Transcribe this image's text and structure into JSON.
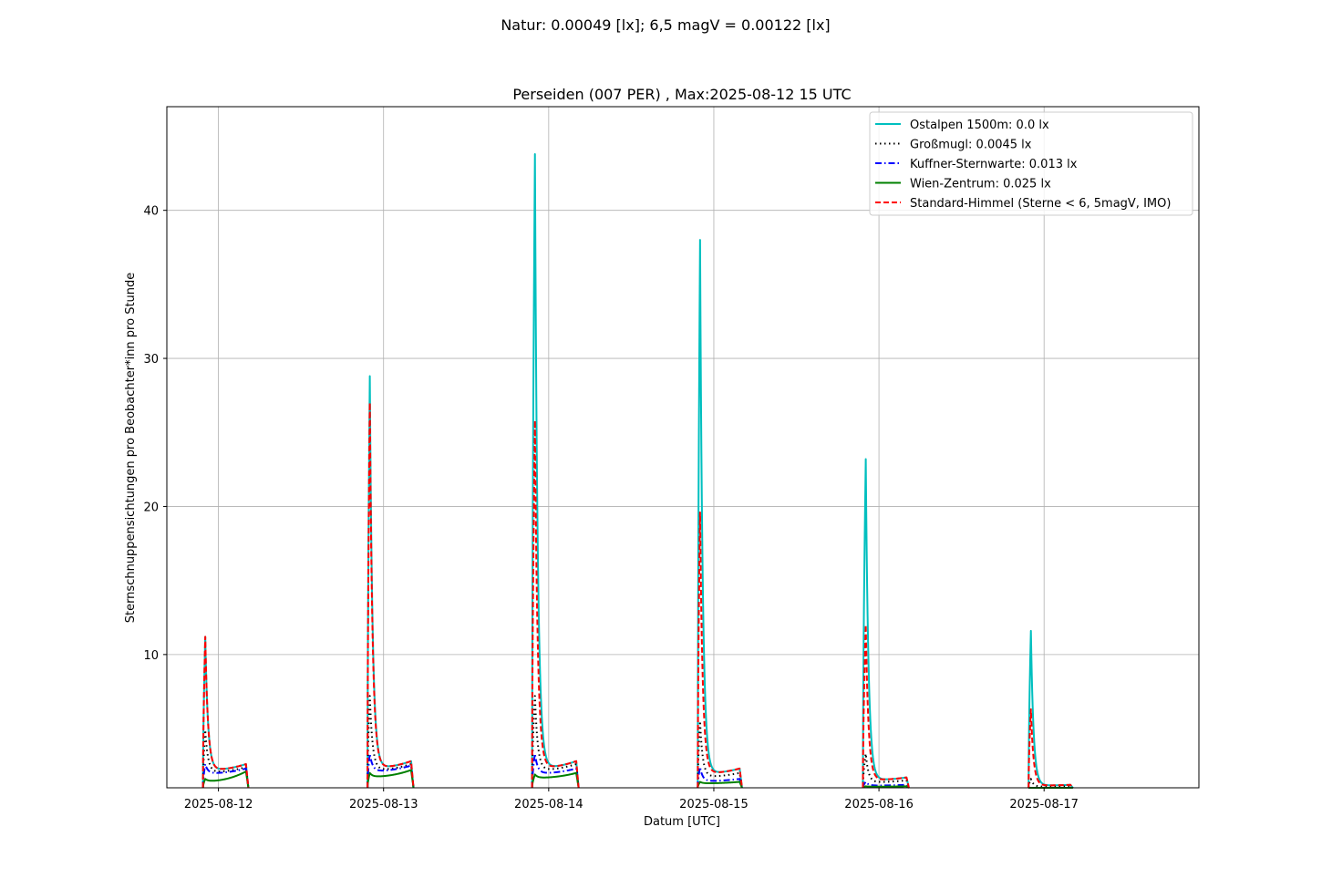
{
  "figure": {
    "suptitle": "Natur: 0.00049 [lx]; 6,5 magV = 0.00122 [lx]"
  },
  "chart_data": {
    "type": "line",
    "title": "Perseiden (007 PER) , Max:2025-08-12 15 UTC",
    "xlabel": "Datum [UTC]",
    "ylabel": "Sternschnuppensichtungen pro Beobachter*inn pro Stunde",
    "x_unit": "days (UTC)",
    "xlim": [
      "2025-08-11 16:30",
      "2025-08-17 22:30"
    ],
    "ylim": [
      1,
      47
    ],
    "x_ticks": [
      "2025-08-12",
      "2025-08-13",
      "2025-08-14",
      "2025-08-15",
      "2025-08-16",
      "2025-08-17"
    ],
    "y_ticks": [
      10,
      20,
      30,
      40
    ],
    "grid": true,
    "legend_position": "top-right",
    "nights": [
      {
        "start": "2025-08-11 21:45",
        "peak": "2025-08-11 22:05",
        "end": "2025-08-12 04:00",
        "values": {
          "ostalpen": 11.2,
          "grossmugl": 4.9,
          "kuffner": 2.6,
          "wien": 1.6,
          "standard": 11.2
        },
        "end_values": {
          "ostalpen": 2.6,
          "grossmugl": 2.4,
          "kuffner": 2.3,
          "wien": 2.1,
          "standard": 2.6
        }
      },
      {
        "start": "2025-08-12 21:40",
        "peak": "2025-08-12 22:00",
        "end": "2025-08-13 04:00",
        "values": {
          "ostalpen": 28.8,
          "grossmugl": 7.2,
          "kuffner": 3.3,
          "wien": 2.0,
          "standard": 27.0
        },
        "end_values": {
          "ostalpen": 2.8,
          "grossmugl": 2.6,
          "kuffner": 2.5,
          "wien": 2.2,
          "standard": 2.8
        }
      },
      {
        "start": "2025-08-13 21:35",
        "peak": "2025-08-13 22:00",
        "end": "2025-08-14 04:00",
        "values": {
          "ostalpen": 43.8,
          "grossmugl": 7.2,
          "kuffner": 3.3,
          "wien": 1.9,
          "standard": 25.8
        },
        "end_values": {
          "ostalpen": 2.8,
          "grossmugl": 2.6,
          "kuffner": 2.3,
          "wien": 2.0,
          "standard": 2.8
        }
      },
      {
        "start": "2025-08-14 21:40",
        "peak": "2025-08-14 22:00",
        "end": "2025-08-15 03:45",
        "values": {
          "ostalpen": 38.0,
          "grossmugl": 5.5,
          "kuffner": 2.4,
          "wien": 1.4,
          "standard": 19.6
        },
        "end_values": {
          "ostalpen": 2.3,
          "grossmugl": 2.0,
          "kuffner": 1.6,
          "wien": 1.4,
          "standard": 2.3
        }
      },
      {
        "start": "2025-08-15 21:40",
        "peak": "2025-08-15 22:05",
        "end": "2025-08-16 04:00",
        "values": {
          "ostalpen": 23.2,
          "grossmugl": 3.3,
          "kuffner": 1.4,
          "wien": 1.1,
          "standard": 12.0
        },
        "end_values": {
          "ostalpen": 1.7,
          "grossmugl": 1.5,
          "kuffner": 1.2,
          "wien": 1.1,
          "standard": 1.7
        }
      },
      {
        "start": "2025-08-16 21:45",
        "peak": "2025-08-16 22:05",
        "end": "2025-08-17 03:50",
        "values": {
          "ostalpen": 11.6,
          "grossmugl": 1.6,
          "kuffner": 1.0,
          "wien": 1.0,
          "standard": 6.3
        },
        "end_values": {
          "ostalpen": 1.2,
          "grossmugl": 1.1,
          "kuffner": 1.0,
          "wien": 1.0,
          "standard": 1.2
        }
      }
    ],
    "series": [
      {
        "key": "ostalpen",
        "name": "Ostalpen 1500m: 0.0 lx",
        "color": "#00bfbf",
        "style": "solid"
      },
      {
        "key": "grossmugl",
        "name": "Großmugl: 0.0045 lx",
        "color": "#000000",
        "style": "dotted"
      },
      {
        "key": "kuffner",
        "name": "Kuffner-Sternwarte: 0.013 lx",
        "color": "#0000ff",
        "style": "dashdot"
      },
      {
        "key": "wien",
        "name": "Wien-Zentrum: 0.025 lx",
        "color": "#008000",
        "style": "solid"
      },
      {
        "key": "standard",
        "name": "Standard-Himmel (Sterne  < 6, 5magV, IMO)",
        "color": "#ff0000",
        "style": "dashed"
      }
    ]
  }
}
